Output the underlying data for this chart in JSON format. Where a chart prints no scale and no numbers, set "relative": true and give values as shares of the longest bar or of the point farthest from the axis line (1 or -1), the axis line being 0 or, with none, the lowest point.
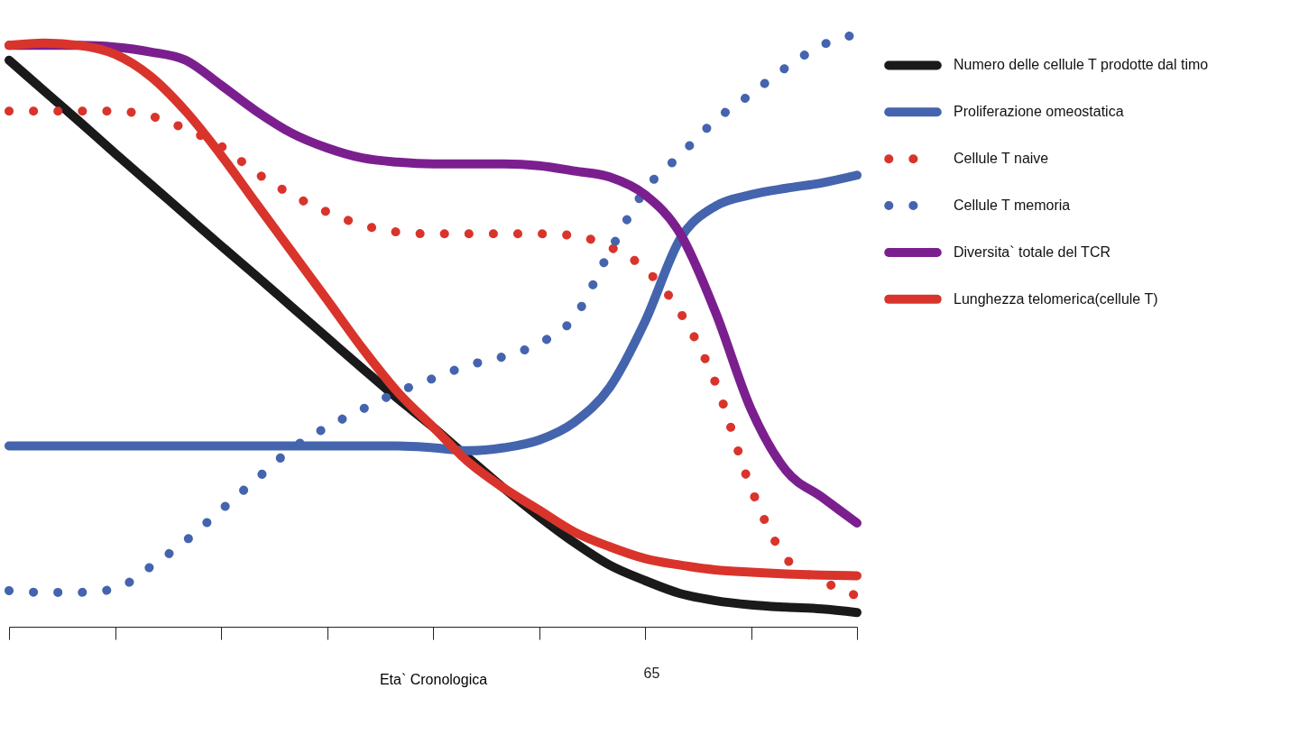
{
  "chart_data": {
    "type": "line",
    "relative": true,
    "xlabel": "Eta` Cronologica",
    "annotations": [
      "65"
    ],
    "legend": "right",
    "grid": false,
    "tick_labels": false,
    "categories": [
      null,
      null,
      null,
      null,
      null,
      null,
      null,
      null,
      null,
      null,
      null,
      null,
      null,
      null,
      null,
      null,
      null,
      null,
      null,
      null,
      null,
      null,
      null,
      null,
      null
    ],
    "series": [
      {
        "name": "Numero delle cellule T prodotte dal timo",
        "color": "#1a1a1a",
        "line_style": "solid",
        "values": [
          0.956,
          0.904,
          0.852,
          0.799,
          0.747,
          0.695,
          0.643,
          0.592,
          0.54,
          0.488,
          0.436,
          0.385,
          0.337,
          0.285,
          0.234,
          0.186,
          0.142,
          0.104,
          0.078,
          0.056,
          0.044,
          0.037,
          0.033,
          0.03,
          0.024
        ]
      },
      {
        "name": "Proliferazione omeostatica",
        "color": "#4464ae",
        "line_style": "solid",
        "values": [
          0.305,
          0.305,
          0.305,
          0.305,
          0.305,
          0.305,
          0.305,
          0.305,
          0.305,
          0.305,
          0.305,
          0.305,
          0.302,
          0.297,
          0.302,
          0.315,
          0.345,
          0.404,
          0.515,
          0.655,
          0.71,
          0.729,
          0.74,
          0.749,
          0.762
        ]
      },
      {
        "name": "Cellule T naive",
        "color": "#d9342b",
        "line_style": "dotted",
        "values": [
          0.87,
          0.87,
          0.87,
          0.87,
          0.862,
          0.84,
          0.811,
          0.766,
          0.729,
          0.7,
          0.678,
          0.666,
          0.663,
          0.663,
          0.663,
          0.663,
          0.66,
          0.641,
          0.604,
          0.53,
          0.411,
          0.234,
          0.115,
          0.078,
          0.052
        ]
      },
      {
        "name": "Cellule T memoria",
        "color": "#4464ae",
        "line_style": "dotted",
        "values": [
          0.061,
          0.058,
          0.058,
          0.064,
          0.101,
          0.145,
          0.197,
          0.249,
          0.3,
          0.337,
          0.367,
          0.396,
          0.419,
          0.441,
          0.456,
          0.478,
          0.522,
          0.633,
          0.737,
          0.796,
          0.855,
          0.899,
          0.944,
          0.981,
          1
        ]
      },
      {
        "name": "Diversita` totale del TCR",
        "color": "#7b1f8f",
        "line_style": "solid",
        "values": [
          0.981,
          0.981,
          0.981,
          0.978,
          0.97,
          0.956,
          0.914,
          0.87,
          0.833,
          0.808,
          0.791,
          0.784,
          0.781,
          0.781,
          0.781,
          0.778,
          0.769,
          0.759,
          0.729,
          0.663,
          0.53,
          0.367,
          0.263,
          0.219,
          0.175
        ]
      },
      {
        "name": "Lunghezza telomerica(cellule T)",
        "color": "#d9342b",
        "line_style": "solid",
        "values": [
          0.981,
          0.985,
          0.981,
          0.966,
          0.929,
          0.87,
          0.796,
          0.714,
          0.633,
          0.552,
          0.47,
          0.396,
          0.337,
          0.278,
          0.234,
          0.197,
          0.16,
          0.135,
          0.115,
          0.104,
          0.096,
          0.092,
          0.089,
          0.087,
          0.086
        ]
      }
    ]
  }
}
